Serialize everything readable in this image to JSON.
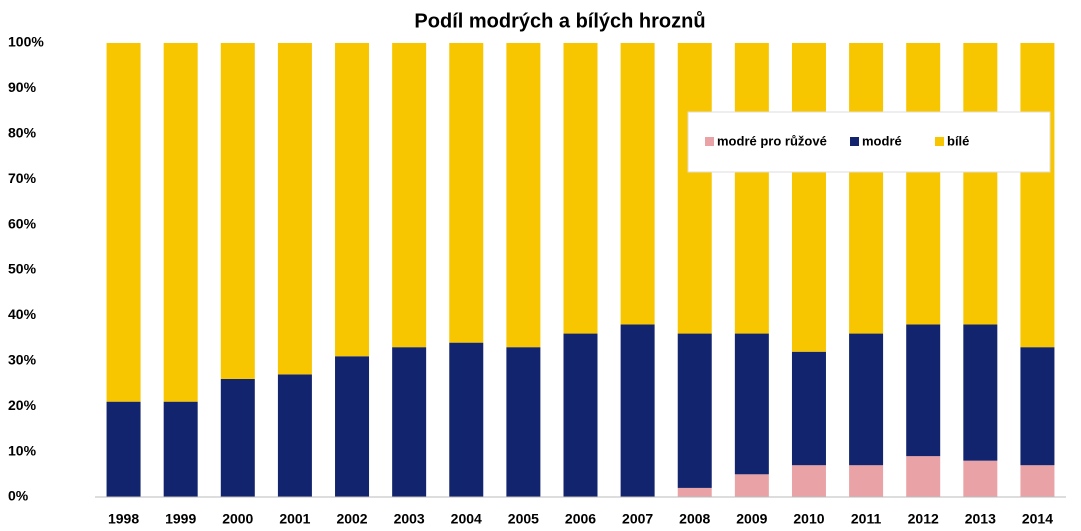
{
  "chart_data": {
    "type": "stacked_bar",
    "title": "Podíl modrých a bílých hroznů",
    "categories": [
      "1998",
      "1999",
      "2000",
      "2001",
      "2002",
      "2003",
      "2004",
      "2005",
      "2006",
      "2007",
      "2008",
      "2009",
      "2010",
      "2011",
      "2012",
      "2013",
      "2014"
    ],
    "series": [
      {
        "name": "modré pro růžové",
        "color": "#e9a3a6",
        "values": [
          0,
          0,
          0,
          0,
          0,
          0,
          0,
          0,
          0,
          0,
          2,
          5,
          7,
          7,
          9,
          8,
          7
        ]
      },
      {
        "name": "modré",
        "color": "#13246e",
        "values": [
          21,
          21,
          26,
          27,
          31,
          33,
          34,
          33,
          36,
          38,
          34,
          31,
          25,
          29,
          29,
          30,
          26
        ]
      },
      {
        "name": "bílé",
        "color": "#f7c600",
        "values": [
          79,
          79,
          74,
          73,
          69,
          67,
          66,
          67,
          64,
          62,
          64,
          64,
          68,
          64,
          62,
          62,
          67
        ]
      }
    ],
    "ylim": [
      0,
      100
    ],
    "yticks": [
      {
        "value": 0,
        "label": "0%"
      },
      {
        "value": 10,
        "label": "10%"
      },
      {
        "value": 20,
        "label": "20%"
      },
      {
        "value": 30,
        "label": "30%"
      },
      {
        "value": 40,
        "label": "40%"
      },
      {
        "value": 50,
        "label": "50%"
      },
      {
        "value": 60,
        "label": "60%"
      },
      {
        "value": 70,
        "label": "70%"
      },
      {
        "value": 80,
        "label": "80%"
      },
      {
        "value": 90,
        "label": "90%"
      },
      {
        "value": 100,
        "label": "100%"
      }
    ],
    "grid": false,
    "legend": "upper right"
  }
}
